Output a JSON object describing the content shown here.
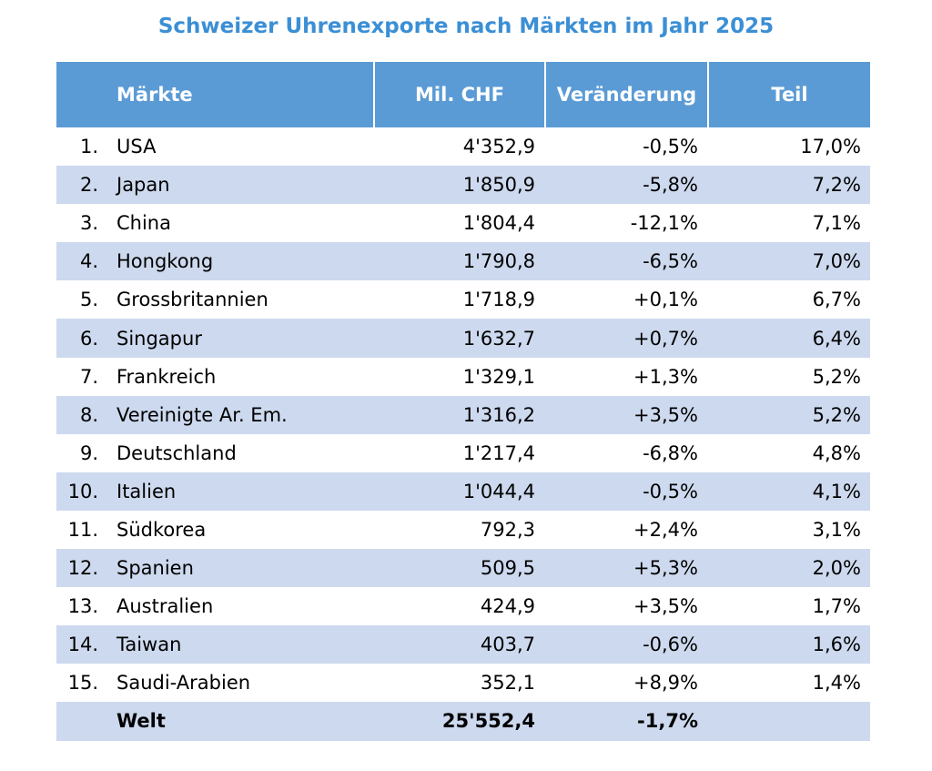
{
  "title": "Schweizer Uhrenexporte nach Märkten im Jahr 2025",
  "table": {
    "columns": [
      "Märkte",
      "Mil. CHF",
      "Veränderung",
      "Teil"
    ],
    "rows": [
      [
        "1.",
        "USA",
        "4'352,9",
        "-0,5%",
        "17,0%"
      ],
      [
        "2.",
        "Japan",
        "1'850,9",
        "-5,8%",
        "7,2%"
      ],
      [
        "3.",
        "China",
        "1'804,4",
        "-12,1%",
        "7,1%"
      ],
      [
        "4.",
        "Hongkong",
        "1'790,8",
        "-6,5%",
        "7,0%"
      ],
      [
        "5.",
        "Grossbritannien",
        "1'718,9",
        "+0,1%",
        "6,7%"
      ],
      [
        "6.",
        "Singapur",
        "1'632,7",
        "+0,7%",
        "6,4%"
      ],
      [
        "7.",
        "Frankreich",
        "1'329,1",
        "+1,3%",
        "5,2%"
      ],
      [
        "8.",
        "Vereinigte Ar. Em.",
        "1'316,2",
        "+3,5%",
        "5,2%"
      ],
      [
        "9.",
        "Deutschland",
        "1'217,4",
        "-6,8%",
        "4,8%"
      ],
      [
        "10.",
        "Italien",
        "1'044,4",
        "-0,5%",
        "4,1%"
      ],
      [
        "11.",
        "Südkorea",
        "792,3",
        "+2,4%",
        "3,1%"
      ],
      [
        "12.",
        "Spanien",
        "509,5",
        "+5,3%",
        "2,0%"
      ],
      [
        "13.",
        "Australien",
        "424,9",
        "+3,5%",
        "1,7%"
      ],
      [
        "14.",
        "Taiwan",
        "403,7",
        "-0,6%",
        "1,6%"
      ],
      [
        "15.",
        "Saudi-Arabien",
        "352,1",
        "+8,9%",
        "1,4%"
      ]
    ],
    "total": {
      "market": "Welt",
      "value": "25'552,4",
      "change": "-1,7%"
    }
  }
}
